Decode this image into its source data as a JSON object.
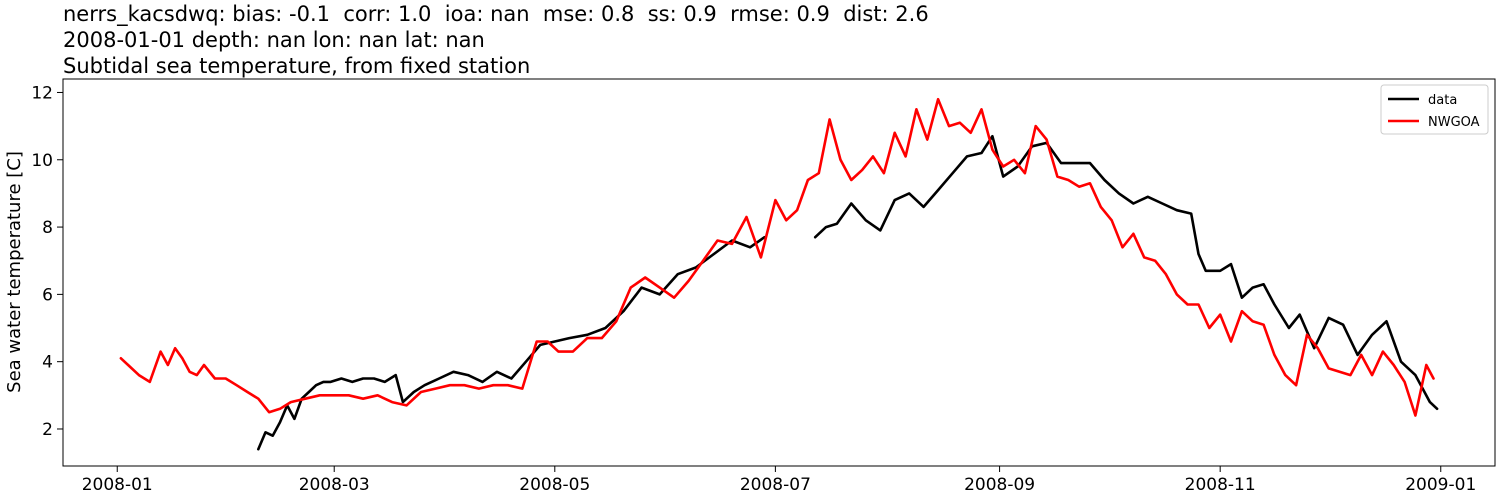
{
  "chart_data": {
    "type": "line",
    "title_lines": [
      "nerrs_kacsdwq: bias: -0.1  corr: 1.0  ioa: nan  mse: 0.8  ss: 0.9  rmse: 0.9  dist: 2.6",
      "2008-01-01 depth: nan lon: nan lat: nan",
      "Subtidal sea temperature, from fixed station"
    ],
    "xlabel": "",
    "ylabel": "Sea water temperature [C]",
    "xlim": [
      "2007-12-17",
      "2009-01-16"
    ],
    "ylim": [
      0.9,
      12.4
    ],
    "x_ticks": [
      "2008-01",
      "2008-03",
      "2008-05",
      "2008-07",
      "2008-09",
      "2008-11",
      "2009-01"
    ],
    "y_ticks": [
      2,
      4,
      6,
      8,
      10,
      12
    ],
    "grid": false,
    "legend_position": "top-right",
    "series": [
      {
        "name": "data",
        "color": "#000000",
        "segments": [
          {
            "x": [
              "2008-02-09",
              "2008-02-11",
              "2008-02-13",
              "2008-02-15",
              "2008-02-17",
              "2008-02-19",
              "2008-02-21",
              "2008-02-23",
              "2008-02-25",
              "2008-02-27",
              "2008-02-29",
              "2008-03-03",
              "2008-03-06",
              "2008-03-09",
              "2008-03-12",
              "2008-03-15",
              "2008-03-18",
              "2008-03-20",
              "2008-03-23",
              "2008-03-26",
              "2008-03-30",
              "2008-04-03",
              "2008-04-07",
              "2008-04-11",
              "2008-04-15",
              "2008-04-19",
              "2008-04-23",
              "2008-04-27",
              "2008-05-01",
              "2008-05-05",
              "2008-05-10",
              "2008-05-15",
              "2008-05-20",
              "2008-05-25",
              "2008-05-30",
              "2008-06-04",
              "2008-06-09",
              "2008-06-14",
              "2008-06-19",
              "2008-06-24",
              "2008-06-28"
            ],
            "y": [
              1.4,
              1.9,
              1.8,
              2.2,
              2.7,
              2.3,
              2.9,
              3.1,
              3.3,
              3.4,
              3.4,
              3.5,
              3.4,
              3.5,
              3.5,
              3.4,
              3.6,
              2.8,
              3.1,
              3.3,
              3.5,
              3.7,
              3.6,
              3.4,
              3.7,
              3.5,
              4.0,
              4.5,
              4.6,
              4.7,
              4.8,
              5.0,
              5.5,
              6.2,
              6.0,
              6.6,
              6.8,
              7.2,
              7.6,
              7.4,
              7.7
            ]
          },
          {
            "x": [
              "2008-07-12",
              "2008-07-15",
              "2008-07-18",
              "2008-07-22",
              "2008-07-26",
              "2008-07-30",
              "2008-08-03",
              "2008-08-07",
              "2008-08-11",
              "2008-08-15",
              "2008-08-19",
              "2008-08-23",
              "2008-08-27",
              "2008-08-30",
              "2008-09-02",
              "2008-09-06",
              "2008-09-10",
              "2008-09-14",
              "2008-09-18",
              "2008-09-22",
              "2008-09-26",
              "2008-09-30",
              "2008-10-04",
              "2008-10-08",
              "2008-10-12",
              "2008-10-16",
              "2008-10-20",
              "2008-10-24",
              "2008-10-26",
              "2008-10-28",
              "2008-11-01",
              "2008-11-04",
              "2008-11-07",
              "2008-11-10",
              "2008-11-13",
              "2008-11-16",
              "2008-11-20",
              "2008-11-23",
              "2008-11-27",
              "2008-12-01",
              "2008-12-05",
              "2008-12-09",
              "2008-12-13",
              "2008-12-17",
              "2008-12-21",
              "2008-12-25",
              "2008-12-29",
              "2008-12-31"
            ],
            "y": [
              7.7,
              8.0,
              8.1,
              8.7,
              8.2,
              7.9,
              8.8,
              9.0,
              8.6,
              9.1,
              9.6,
              10.1,
              10.2,
              10.7,
              9.5,
              9.8,
              10.4,
              10.5,
              9.9,
              9.9,
              9.9,
              9.4,
              9.0,
              8.7,
              8.9,
              8.7,
              8.5,
              8.4,
              7.2,
              6.7,
              6.7,
              6.9,
              5.9,
              6.2,
              6.3,
              5.7,
              5.0,
              5.4,
              4.4,
              5.3,
              5.1,
              4.2,
              4.8,
              5.2,
              4.0,
              3.6,
              2.8,
              2.6
            ]
          }
        ]
      },
      {
        "name": "NWGOA",
        "color": "#ff0000",
        "segments": [
          {
            "x": [
              "2008-01-02",
              "2008-01-04",
              "2008-01-07",
              "2008-01-10",
              "2008-01-13",
              "2008-01-15",
              "2008-01-17",
              "2008-01-19",
              "2008-01-21",
              "2008-01-23",
              "2008-01-25",
              "2008-01-28",
              "2008-01-31",
              "2008-02-03",
              "2008-02-06",
              "2008-02-09",
              "2008-02-12",
              "2008-02-15",
              "2008-02-18",
              "2008-02-22",
              "2008-02-26",
              "2008-03-01",
              "2008-03-05",
              "2008-03-09",
              "2008-03-13",
              "2008-03-17",
              "2008-03-21",
              "2008-03-25",
              "2008-03-29",
              "2008-04-02",
              "2008-04-06",
              "2008-04-10",
              "2008-04-14",
              "2008-04-18",
              "2008-04-22",
              "2008-04-26",
              "2008-04-29",
              "2008-05-02",
              "2008-05-06",
              "2008-05-10",
              "2008-05-14",
              "2008-05-18",
              "2008-05-22",
              "2008-05-26",
              "2008-05-30",
              "2008-06-03",
              "2008-06-07",
              "2008-06-11",
              "2008-06-15",
              "2008-06-19",
              "2008-06-23",
              "2008-06-27",
              "2008-07-01",
              "2008-07-04",
              "2008-07-07",
              "2008-07-10",
              "2008-07-13",
              "2008-07-16",
              "2008-07-19",
              "2008-07-22",
              "2008-07-25",
              "2008-07-28",
              "2008-07-31",
              "2008-08-03",
              "2008-08-06",
              "2008-08-09",
              "2008-08-12",
              "2008-08-15",
              "2008-08-18",
              "2008-08-21",
              "2008-08-24",
              "2008-08-27",
              "2008-08-30",
              "2008-09-02",
              "2008-09-05",
              "2008-09-08",
              "2008-09-11",
              "2008-09-14",
              "2008-09-17",
              "2008-09-20",
              "2008-09-23",
              "2008-09-26",
              "2008-09-29",
              "2008-10-02",
              "2008-10-05",
              "2008-10-08",
              "2008-10-11",
              "2008-10-14",
              "2008-10-17",
              "2008-10-20",
              "2008-10-23",
              "2008-10-26",
              "2008-10-29",
              "2008-11-01",
              "2008-11-04",
              "2008-11-07",
              "2008-11-10",
              "2008-11-13",
              "2008-11-16",
              "2008-11-19",
              "2008-11-22",
              "2008-11-25",
              "2008-11-28",
              "2008-12-01",
              "2008-12-04",
              "2008-12-07",
              "2008-12-10",
              "2008-12-13",
              "2008-12-16",
              "2008-12-19",
              "2008-12-22",
              "2008-12-25",
              "2008-12-28",
              "2008-12-30"
            ],
            "y": [
              4.1,
              3.9,
              3.6,
              3.4,
              4.3,
              3.9,
              4.4,
              4.1,
              3.7,
              3.6,
              3.9,
              3.5,
              3.5,
              3.3,
              3.1,
              2.9,
              2.5,
              2.6,
              2.8,
              2.9,
              3.0,
              3.0,
              3.0,
              2.9,
              3.0,
              2.8,
              2.7,
              3.1,
              3.2,
              3.3,
              3.3,
              3.2,
              3.3,
              3.3,
              3.2,
              4.6,
              4.6,
              4.3,
              4.3,
              4.7,
              4.7,
              5.2,
              6.2,
              6.5,
              6.2,
              5.9,
              6.4,
              7.0,
              7.6,
              7.5,
              8.3,
              7.1,
              8.8,
              8.2,
              8.5,
              9.4,
              9.6,
              11.2,
              10.0,
              9.4,
              9.7,
              10.1,
              9.6,
              10.8,
              10.1,
              11.5,
              10.6,
              11.8,
              11.0,
              11.1,
              10.8,
              11.5,
              10.3,
              9.8,
              10.0,
              9.6,
              11.0,
              10.6,
              9.5,
              9.4,
              9.2,
              9.3,
              8.6,
              8.2,
              7.4,
              7.8,
              7.1,
              7.0,
              6.6,
              6.0,
              5.7,
              5.7,
              5.0,
              5.4,
              4.6,
              5.5,
              5.2,
              5.1,
              4.2,
              3.6,
              3.3,
              4.8,
              4.4,
              3.8,
              3.7,
              3.6,
              4.2,
              3.6,
              4.3,
              3.9,
              3.4,
              2.4,
              3.9,
              3.5
            ]
          }
        ]
      }
    ]
  }
}
